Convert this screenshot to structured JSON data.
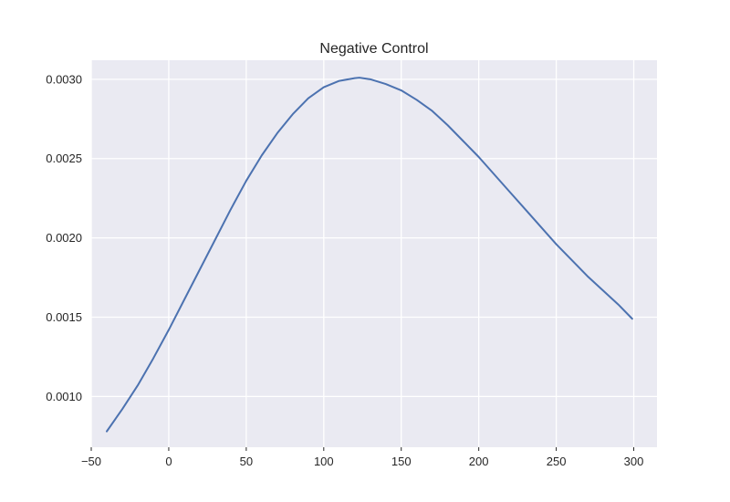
{
  "chart_data": {
    "type": "line",
    "title": "Negative Control",
    "xlabel": "",
    "ylabel": "",
    "xlim": [
      -50,
      315
    ],
    "ylim": [
      0.00068,
      0.00312
    ],
    "x_ticks": [
      -50,
      0,
      50,
      100,
      150,
      200,
      250,
      300
    ],
    "x_tick_labels": [
      "−50",
      "0",
      "50",
      "100",
      "150",
      "200",
      "250",
      "300"
    ],
    "y_ticks": [
      0.001,
      0.0015,
      0.002,
      0.0025,
      0.003
    ],
    "y_tick_labels": [
      "0.0010",
      "0.0015",
      "0.0020",
      "0.0025",
      "0.0030"
    ],
    "grid": true,
    "colors": {
      "plot_background": "#eaeaf2",
      "grid": "#ffffff",
      "line": "#4c72b0",
      "text": "#262626"
    },
    "series": [
      {
        "color": "#4c72b0",
        "x": [
          -40,
          -30,
          -20,
          -10,
          0,
          10,
          20,
          30,
          40,
          50,
          60,
          70,
          80,
          90,
          100,
          110,
          120,
          123,
          130,
          140,
          150,
          160,
          170,
          180,
          190,
          200,
          210,
          220,
          230,
          240,
          250,
          260,
          270,
          280,
          290,
          299
        ],
        "y": [
          0.00078,
          0.00092,
          0.00107,
          0.00124,
          0.00142,
          0.00161,
          0.0018,
          0.00199,
          0.00218,
          0.00236,
          0.00252,
          0.00266,
          0.00278,
          0.00288,
          0.00295,
          0.00299,
          0.003007,
          0.00301,
          0.003,
          0.00297,
          0.00293,
          0.00287,
          0.0028,
          0.00271,
          0.00261,
          0.00251,
          0.0024,
          0.00229,
          0.00218,
          0.00207,
          0.00196,
          0.00186,
          0.00176,
          0.00167,
          0.00158,
          0.00149
        ]
      }
    ]
  }
}
